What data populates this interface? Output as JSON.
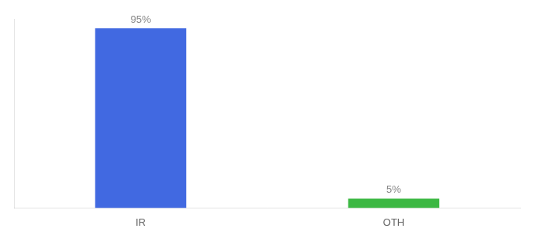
{
  "chart_data": {
    "type": "bar",
    "categories": [
      "IR",
      "OTH"
    ],
    "values": [
      95,
      5
    ],
    "value_labels": [
      "95%",
      "5%"
    ],
    "colors": [
      "#4169e1",
      "#3cb843"
    ],
    "ylim": [
      0,
      100
    ],
    "grid": false,
    "data_labels": true,
    "tick_labels": "x"
  }
}
